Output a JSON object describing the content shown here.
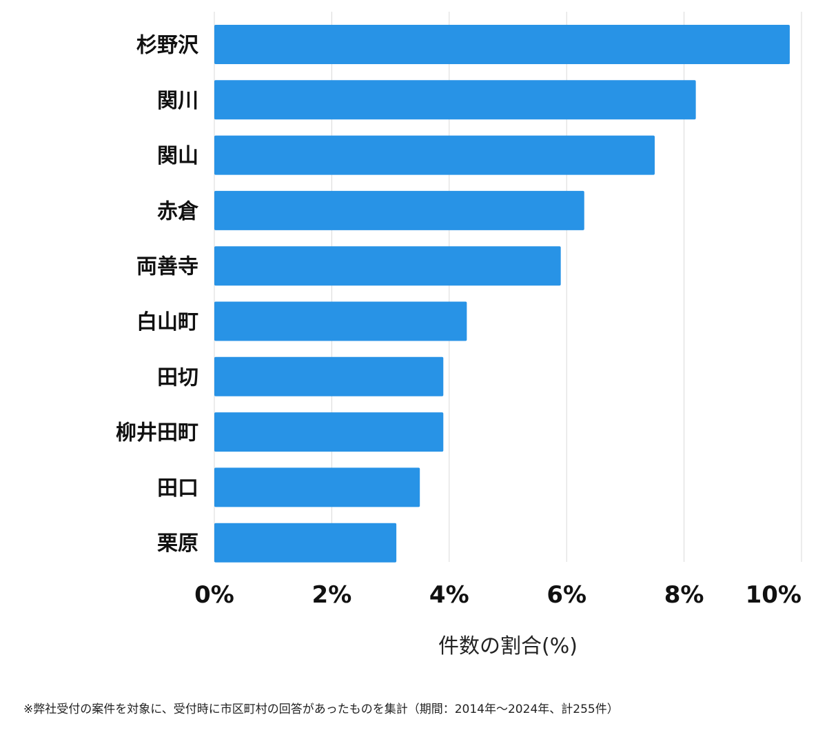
{
  "chart_data": {
    "type": "bar",
    "orientation": "horizontal",
    "categories": [
      "杉野沢",
      "関川",
      "関山",
      "赤倉",
      "両善寺",
      "白山町",
      "田切",
      "柳井田町",
      "田口",
      "栗原"
    ],
    "values": [
      9.8,
      8.2,
      7.5,
      6.3,
      5.9,
      4.3,
      3.9,
      3.9,
      3.5,
      3.1
    ],
    "xlim": [
      0,
      10
    ],
    "ticks": [
      0,
      2,
      4,
      6,
      8,
      10
    ],
    "tick_labels": [
      "0%",
      "2%",
      "4%",
      "6%",
      "8%",
      "10%"
    ],
    "xlabel": "件数の割合(%)",
    "ylabel": "",
    "grid": true,
    "bar_color": "#2893e6",
    "grid_color": "#d9d9d9"
  },
  "footnote": "※弊社受付の案件を対象に、受付時に市区町村の回答があったものを集計（期間：2014年～2024年、計255件）"
}
